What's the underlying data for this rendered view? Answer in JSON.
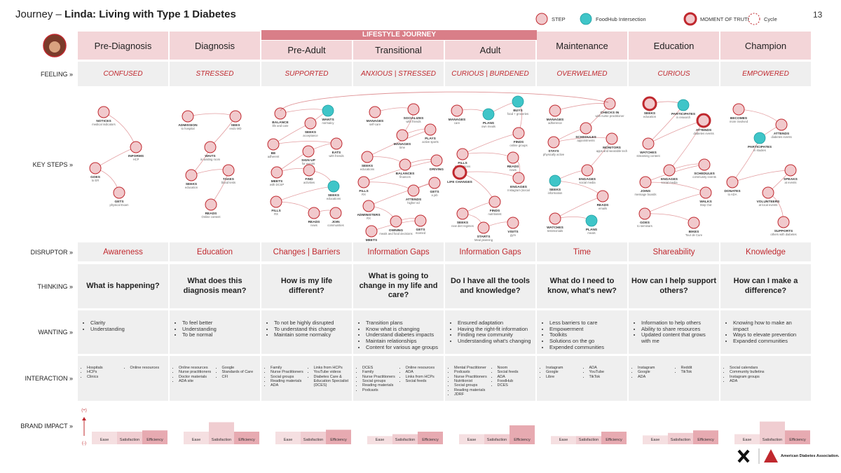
{
  "header": {
    "prefix": "Journey –",
    "title": "Linda: Living with Type 1 Diabetes",
    "page": "13"
  },
  "legend": [
    {
      "label": "STEP",
      "kind": "step"
    },
    {
      "label": "FoodHub Intersection",
      "kind": "foodhub"
    },
    {
      "label": "MOMENT OF TRUTH",
      "kind": "moment"
    },
    {
      "label": "Cycle",
      "kind": "cycle"
    }
  ],
  "lifestyle": "LIFESTYLE JOURNEY",
  "row_labels": [
    "FEELING »",
    "KEY STEPS »",
    "DISRUPTOR »",
    "THINKING »",
    "WANTING »",
    "INTERACTION »",
    "BRAND IMPACT »"
  ],
  "brand_scale": [
    "(+)",
    "(-)"
  ],
  "brand_metrics": [
    "Ease",
    "Satisfaction",
    "Efficiency"
  ],
  "footer": {
    "logo": "American Diabetes Association."
  },
  "stages": [
    {
      "name": "Pre-Diagnosis",
      "feeling": "CONFUSED",
      "disruptor": "Awareness",
      "thinking": "What is happening?",
      "wanting": [
        "Clarity",
        "Understanding"
      ],
      "interaction": [
        [
          "Hospitals",
          "HCPs",
          "Clinics"
        ],
        [
          "Online resources"
        ]
      ],
      "impact": [
        2,
        2,
        2.2
      ],
      "steps": [
        {
          "verb": "NOTICES",
          "detail": "medical indicators",
          "kind": "step"
        },
        {
          "verb": "INFORMS",
          "detail": "HCP",
          "kind": "step"
        },
        {
          "verb": "GOES",
          "detail": "to ER",
          "kind": "step"
        },
        {
          "verb": "GETS",
          "detail": "physical Exam",
          "kind": "step"
        }
      ]
    },
    {
      "name": "Diagnosis",
      "feeling": "STRESSED",
      "disruptor": "Education",
      "thinking": "What does this diagnosis mean?",
      "wanting": [
        "To feel better",
        "Understanding",
        "To be normal"
      ],
      "interaction": [
        [
          "Online resources",
          "Nurse practitioners",
          "Doctor materials",
          "ADA site"
        ],
        [
          "Google",
          "Standards of Care",
          "CFI"
        ]
      ],
      "impact": [
        2,
        3.5,
        2
      ],
      "steps": [
        {
          "verb": "ADMISSION",
          "detail": "to hospital",
          "kind": "step"
        },
        {
          "verb": "SEES",
          "detail": "endo MD",
          "kind": "step"
        },
        {
          "verb": "WAITS",
          "detail": "in waiting room",
          "kind": "step"
        },
        {
          "verb": "SEEKS",
          "detail": "education",
          "kind": "step"
        },
        {
          "verb": "TAKES",
          "detail": "blood tests",
          "kind": "step"
        },
        {
          "verb": "READS",
          "detail": "Online content",
          "kind": "step"
        }
      ]
    },
    {
      "name": "Pre-Adult",
      "feeling": "SUPPORTED",
      "disruptor": "Changes | Barriers",
      "thinking": "How is my life different?",
      "wanting": [
        "To not be highly disrupted",
        "To understand this change",
        "Maintain some normalcy"
      ],
      "interaction": [
        [
          "Family",
          "Nurse Practitioners",
          "Social groups",
          "Reading materials",
          "ADA"
        ],
        [
          "Links from HCPs",
          "YouTube videos",
          "Diabetes Care & Education Specialist (DCES)"
        ]
      ],
      "impact": [
        2,
        2,
        2.3
      ],
      "steps": [
        {
          "verb": "BALANCE",
          "detail": "life and care",
          "kind": "step"
        },
        {
          "verb": "WANTS",
          "detail": "normalcy",
          "kind": "foodhub"
        },
        {
          "verb": "SEEKS",
          "detail": "acceptance",
          "kind": "step"
        },
        {
          "verb": "BE",
          "detail": "adherent",
          "kind": "step"
        },
        {
          "verb": "EATS",
          "detail": "with friends",
          "kind": "step"
        },
        {
          "verb": "SIGN UP",
          "detail": "for events",
          "kind": "step"
        },
        {
          "verb": "MEETS",
          "detail": "with DCSP",
          "kind": "step"
        },
        {
          "verb": "FIND",
          "detail": "activities",
          "kind": "step"
        },
        {
          "verb": "SEEKS",
          "detail": "educations",
          "kind": "foodhub"
        },
        {
          "verb": "FILLS",
          "detail": "RX",
          "kind": "step"
        },
        {
          "verb": "READS",
          "detail": "news",
          "kind": "step"
        },
        {
          "verb": "JOIN",
          "detail": "communities",
          "kind": "step"
        }
      ]
    },
    {
      "name": "Transitional",
      "feeling": "ANXIOUS | STRESSED",
      "disruptor": "Information Gaps",
      "thinking": "What is going to change in my life and care?",
      "wanting": [
        "Transition plans",
        "Know what is changing",
        "Understand diabetes impacts",
        "Maintain relationships",
        "Content for various age groups"
      ],
      "interaction": [
        [
          "DCES",
          "Family",
          "Nurse Practitioners",
          "Social groups",
          "Reading materials",
          "Podcasts"
        ],
        [
          "Online resources",
          "ADA",
          "Links from HCPs",
          "Social feeds"
        ]
      ],
      "impact": [
        1.3,
        1.6,
        2
      ],
      "steps": [
        {
          "verb": "MANAGES",
          "detail": "self-care",
          "kind": "step"
        },
        {
          "verb": "SOCIALIZES",
          "detail": "with friends",
          "kind": "step"
        },
        {
          "verb": "MANAGES",
          "detail": "time",
          "kind": "step"
        },
        {
          "verb": "PLAYS",
          "detail": "active sports",
          "kind": "step"
        },
        {
          "verb": "SEEKS",
          "detail": "educations",
          "kind": "step"
        },
        {
          "verb": "BALANCES",
          "detail": "finances",
          "kind": "step"
        },
        {
          "verb": "DRIVING",
          "detail": "",
          "kind": "step"
        },
        {
          "verb": "FILLS",
          "detail": "RX",
          "kind": "step"
        },
        {
          "verb": "ATTENDS",
          "detail": "higher ed",
          "kind": "step"
        },
        {
          "verb": "GETS",
          "detail": "a job",
          "kind": "step"
        },
        {
          "verb": "ADMINISTERS",
          "detail": "RX",
          "kind": "step"
        },
        {
          "verb": "OWNING",
          "detail": "meals and food decisions",
          "kind": "step"
        },
        {
          "verb": "GETS",
          "detail": "married",
          "kind": "step"
        },
        {
          "verb": "MEETS",
          "detail": "with DCEP",
          "kind": "step"
        }
      ]
    },
    {
      "name": "Adult",
      "feeling": "CURIOUS | BURDENED",
      "disruptor": "Information Gaps",
      "thinking": "Do I have all the tools and knowledge?",
      "wanting": [
        "Ensured adaptation",
        "Having the right-fit information",
        "Finding new community",
        "Understanding what's changing"
      ],
      "interaction": [
        [
          "Mental Practitioner",
          "Podcasts",
          "Nurse Practitioners",
          "Nutritionist",
          "Social groups",
          "Reading materials",
          "JDRF"
        ],
        [
          "Noom",
          "Social feeds",
          "ADA",
          "FoodHub",
          "DCES"
        ]
      ],
      "impact": [
        1.6,
        1.6,
        3
      ],
      "steps": [
        {
          "verb": "MANAGES",
          "detail": "care",
          "kind": "step"
        },
        {
          "verb": "PLANS",
          "detail": "own meals",
          "kind": "foodhub"
        },
        {
          "verb": "BUYS",
          "detail": "food + groceries",
          "kind": "foodhub"
        },
        {
          "verb": "FINDS",
          "detail": "online groups",
          "kind": "step"
        },
        {
          "verb": "FILLS",
          "detail": "medications",
          "kind": "step"
        },
        {
          "verb": "READS",
          "detail": "news",
          "kind": "step"
        },
        {
          "verb": "ENGAGES",
          "detail": "Instagram |social",
          "kind": "step"
        },
        {
          "verb": "LIFE CHANGES",
          "detail": "",
          "kind": "moment"
        },
        {
          "verb": "FINDS",
          "detail": "nutritionist",
          "kind": "step"
        },
        {
          "verb": "SEEKS",
          "detail": "new diet regimes",
          "kind": "step"
        },
        {
          "verb": "STARTS",
          "detail": "Meal planning",
          "kind": "step"
        },
        {
          "verb": "VISITS",
          "detail": "gym",
          "kind": "step"
        }
      ]
    },
    {
      "name": "Maintenance",
      "feeling": "OVERWELMED",
      "disruptor": "Time",
      "thinking": "What do I need to know, what's new?",
      "wanting": [
        "Less barriers to care",
        "Empowerment",
        "Toolkits",
        "Solutions on the go",
        "Expended communities"
      ],
      "interaction": [
        [
          "Instagram",
          "Google",
          "Libre"
        ],
        [
          "ADA",
          "YouTube",
          "TikTok"
        ]
      ],
      "impact": [
        1.3,
        1.3,
        2
      ],
      "steps": [
        {
          "verb": "MANAGES",
          "detail": "adherence",
          "kind": "step"
        },
        {
          "verb": "CHECKS IN",
          "detail": "with nurse practitioner",
          "kind": "step"
        },
        {
          "verb": "SCHEDULES",
          "detail": "appointments",
          "kind": "step"
        },
        {
          "verb": "STAYS",
          "detail": "physically active",
          "kind": "step"
        },
        {
          "verb": "MONITORS",
          "detail": "apps and wearable tech",
          "kind": "step"
        },
        {
          "verb": "ENGAGES",
          "detail": "social media",
          "kind": "step"
        },
        {
          "verb": "SEEKS",
          "detail": "information",
          "kind": "foodhub"
        },
        {
          "verb": "READS",
          "detail": "emails",
          "kind": "step"
        },
        {
          "verb": "WATCHES",
          "detail": "testimonials",
          "kind": "step"
        },
        {
          "verb": "PLANS",
          "detail": "meals",
          "kind": "foodhub"
        }
      ]
    },
    {
      "name": "Education",
      "feeling": "CURIOUS",
      "disruptor": "Shareability",
      "thinking": "How can I help support others?",
      "wanting": [
        "Information to help others",
        "Ability to share resources",
        "Updated content that grows with me"
      ],
      "interaction": [
        [
          "Instagram",
          "Google",
          "ADA"
        ],
        [
          "Reddit",
          "TikTok"
        ]
      ],
      "impact": [
        1.4,
        1.8,
        2.2
      ],
      "steps": [
        {
          "verb": "SEEKS",
          "detail": "education",
          "kind": "moment"
        },
        {
          "verb": "PARTICIPATES",
          "detail": "in research",
          "kind": "foodhub"
        },
        {
          "verb": "WATCHES",
          "detail": "streaming content",
          "kind": "step"
        },
        {
          "verb": "ATTENDS",
          "detail": "diabetes events",
          "kind": "moment"
        },
        {
          "verb": "ENGAGES",
          "detail": "social media",
          "kind": "step"
        },
        {
          "verb": "SCHEDULES",
          "detail": "community events",
          "kind": "step"
        },
        {
          "verb": "JOINS",
          "detail": "message boards",
          "kind": "step"
        },
        {
          "verb": "WALKS",
          "detail": "Step Out",
          "kind": "step"
        },
        {
          "verb": "GOES",
          "detail": "to seminars",
          "kind": "step"
        },
        {
          "verb": "BIKES",
          "detail": "Tour de Cure",
          "kind": "step"
        }
      ]
    },
    {
      "name": "Champion",
      "feeling": "EMPOWERED",
      "disruptor": "Knowledge",
      "thinking": "How can I make a difference?",
      "wanting": [
        "Knowing how to make an impact",
        "Ways to elevate prevention",
        "Expanded communities"
      ],
      "interaction": [
        [
          "Social calendars",
          "Community bulletins",
          "Instagram groups",
          "ADA"
        ],
        []
      ],
      "impact": [
        1.6,
        3.6,
        2.2
      ],
      "steps": [
        {
          "verb": "BECOMES",
          "detail": "more involved",
          "kind": "step"
        },
        {
          "verb": "ATTENDS",
          "detail": "diabetes events",
          "kind": "step"
        },
        {
          "verb": "PARTICIPATES",
          "detail": "in studies",
          "kind": "foodhub"
        },
        {
          "verb": "DONATES",
          "detail": "to ADA",
          "kind": "step"
        },
        {
          "verb": "SPEAKS",
          "detail": "at events",
          "kind": "step"
        },
        {
          "verb": "VOLUNTEERS",
          "detail": "at local events",
          "kind": "step"
        },
        {
          "verb": "SUPPORTS",
          "detail": "others with diabetes",
          "kind": "step"
        }
      ]
    }
  ]
}
